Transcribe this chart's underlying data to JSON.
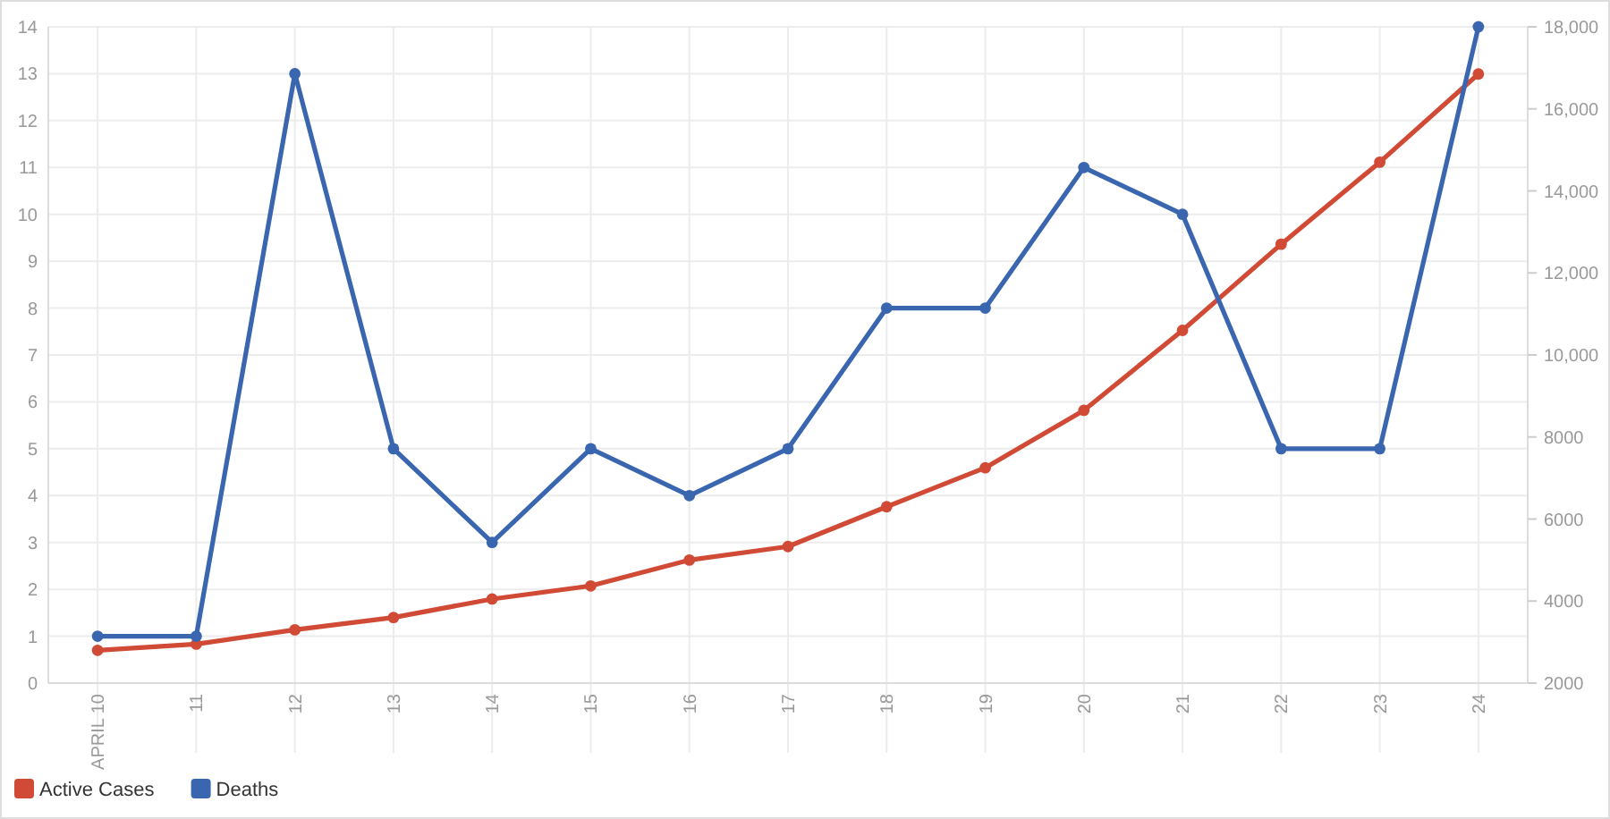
{
  "chart_data": {
    "type": "line",
    "categories": [
      "APRIL 10",
      "11",
      "12",
      "13",
      "14",
      "15",
      "16",
      "17",
      "18",
      "19",
      "20",
      "21",
      "22",
      "23",
      "24"
    ],
    "series": [
      {
        "name": "Active Cases",
        "color": "#d04a35",
        "axis": "y2",
        "values": [
          2800,
          2950,
          3300,
          3600,
          4050,
          4370,
          5000,
          5330,
          6300,
          7250,
          8650,
          10600,
          12700,
          14700,
          16850
        ]
      },
      {
        "name": "Deaths",
        "color": "#3a66b0",
        "values": [
          1,
          1,
          13,
          5,
          3,
          5,
          4,
          5,
          8,
          8,
          11,
          10,
          5,
          5,
          14
        ]
      }
    ],
    "ylim": [
      0,
      14
    ],
    "yticks": [
      0,
      1,
      2,
      3,
      4,
      5,
      6,
      7,
      8,
      9,
      10,
      11,
      12,
      13,
      14
    ],
    "y2lim": [
      2000,
      18000
    ],
    "y2ticks": [
      2000,
      4000,
      6000,
      8000,
      {
        "value": 10000,
        "label": "10,000"
      },
      {
        "value": 12000,
        "label": "12,000"
      },
      {
        "value": 14000,
        "label": "14,000"
      },
      {
        "value": 16000,
        "label": "16,000"
      },
      {
        "value": 18000,
        "label": "18,000"
      }
    ],
    "grid": true,
    "legend": "bottom left",
    "marker": "circle",
    "line_style": "solid"
  }
}
